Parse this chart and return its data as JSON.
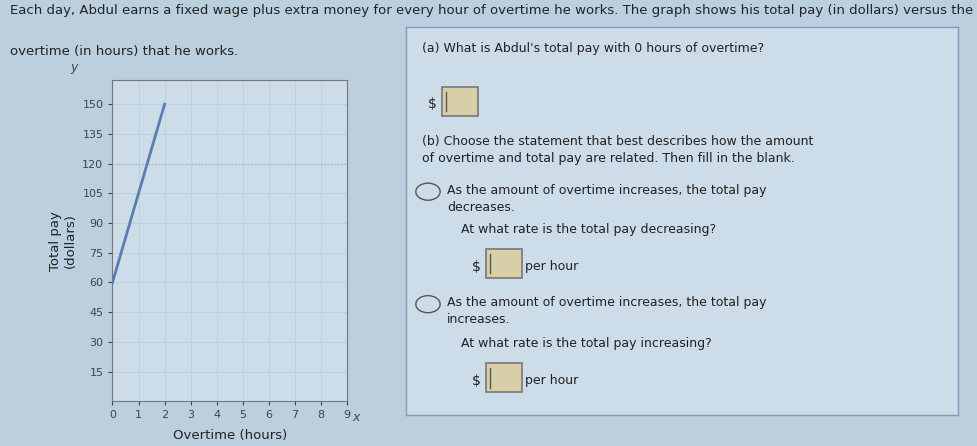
{
  "title_line1": "Each day, Abdul earns a fixed wage plus extra money for every hour of overtime he works. The graph shows his total pay (in dollars) versus the amount of",
  "title_line2": "overtime (in hours) that he works.",
  "ylabel": "Total pay\n(dollars)",
  "xlabel": "Overtime (hours)",
  "y_label_axis": "y",
  "x_label_axis": "x",
  "xlim": [
    0,
    9
  ],
  "ylim": [
    0,
    162
  ],
  "xticks": [
    0,
    1,
    2,
    3,
    4,
    5,
    6,
    7,
    8,
    9
  ],
  "yticks": [
    15,
    30,
    45,
    60,
    75,
    90,
    105,
    120,
    135,
    150
  ],
  "line_x": [
    0,
    2
  ],
  "line_y": [
    60,
    150
  ],
  "dotted_y": 120,
  "line_color": "#5b7db1",
  "dotted_color": "#9ab0cc",
  "grid_color": "#b8cfe0",
  "fig_bg": "#bccfde",
  "graph_bg": "#ccdce8",
  "right_panel_bg": "#ccdce8",
  "right_panel_border": "#8899bb",
  "text_color": "#222222",
  "axis_tick_color": "#444444",
  "title_fontsize": 9.5,
  "axis_label_fontsize": 9.5,
  "tick_fontsize": 8,
  "qa_a": "(a) What is Abdul's total pay with 0 hours of overtime?",
  "qa_b_intro": "(b) Choose the statement that best describes how the amount\nof overtime and total pay are related. Then fill in the blank.",
  "qa_b1": "As the amount of overtime increases, the total pay\ndecreases.",
  "qa_b1_sub": "At what rate is the total pay decreasing?",
  "qa_b2": "As the amount of overtime increases, the total pay\nincreases.",
  "qa_b2_sub": "At what rate is the total pay increasing?",
  "per_hour": "per hour"
}
